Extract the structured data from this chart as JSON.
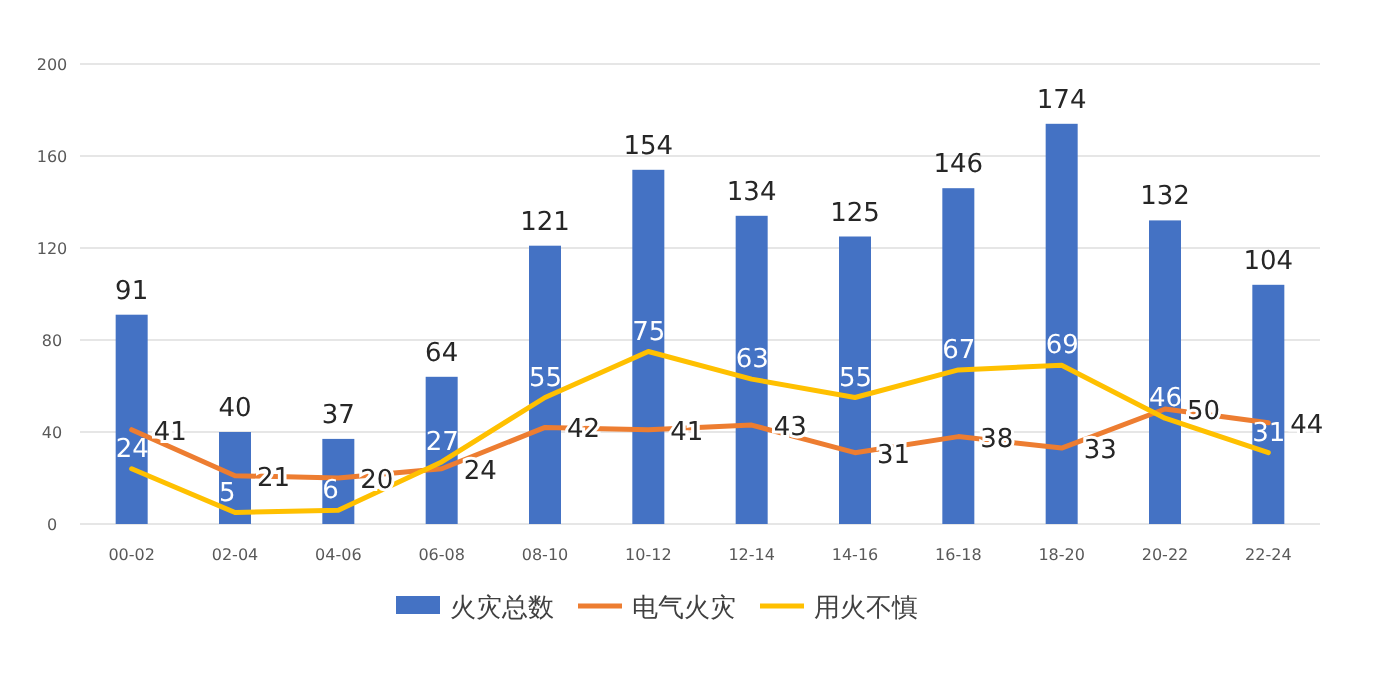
{
  "chart_data": {
    "type": "bar",
    "categories": [
      "00-02",
      "02-04",
      "04-06",
      "06-08",
      "08-10",
      "10-12",
      "12-14",
      "14-16",
      "16-18",
      "18-20",
      "20-22",
      "22-24"
    ],
    "series": [
      {
        "name": "火灾总数",
        "color": "#4472c4",
        "values": [
          91,
          40,
          37,
          64,
          121,
          154,
          134,
          125,
          146,
          174,
          132,
          104
        ]
      },
      {
        "name": "电气火灾",
        "type": "line",
        "color": "#ed7d31",
        "values": [
          41,
          21,
          20,
          24,
          42,
          41,
          43,
          31,
          38,
          33,
          50,
          44
        ]
      },
      {
        "name": "用火不慎",
        "type": "line",
        "color": "#ffc000",
        "values": [
          24,
          5,
          6,
          27,
          55,
          75,
          63,
          55,
          67,
          69,
          46,
          31
        ]
      }
    ],
    "ylim": [
      0,
      200
    ],
    "yticks": [
      0,
      40,
      80,
      120,
      160,
      200
    ],
    "grid": "y",
    "legend": "bottom",
    "data_labels": true,
    "marker": "none"
  }
}
